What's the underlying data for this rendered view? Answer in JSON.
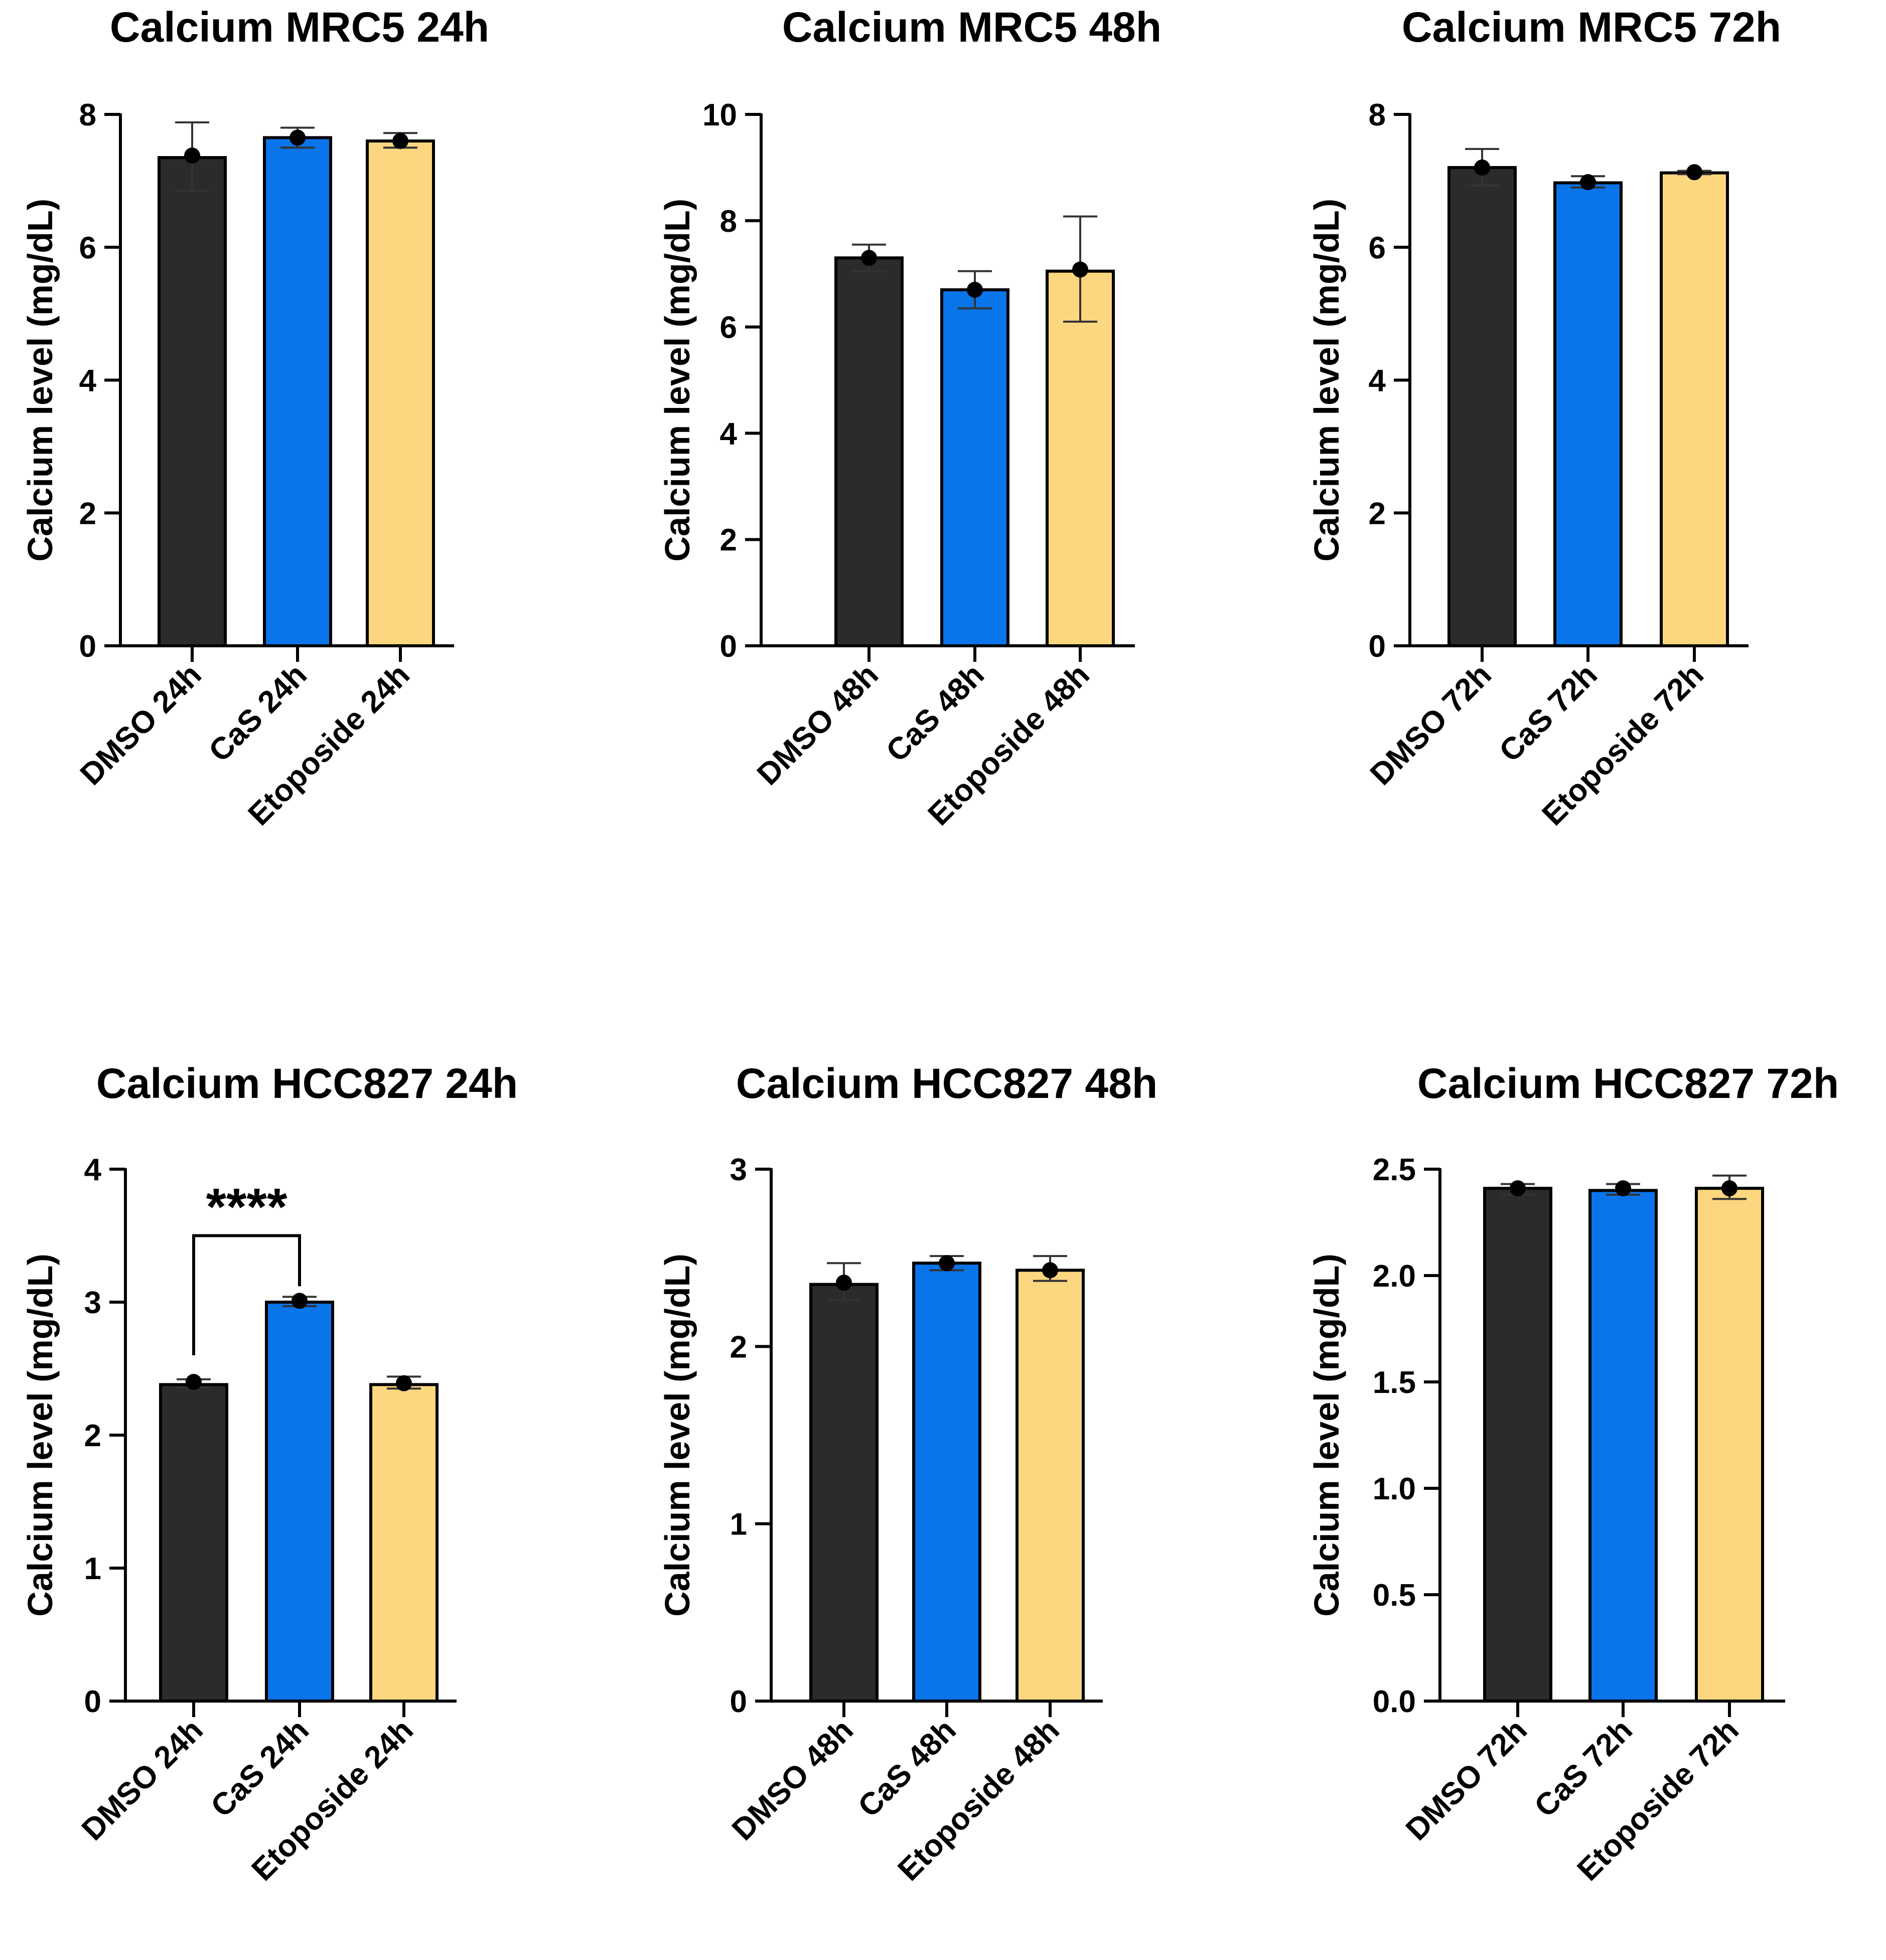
{
  "figure": {
    "colors": {
      "dmso": "#2b2b2b",
      "cas": "#0a74ea",
      "etoposide": "#fdd780",
      "stroke": "#000000"
    }
  },
  "chart_data": [
    {
      "type": "bar",
      "title": "Calcium MRC5 24h",
      "ylabel": "Calcium level (mg/dL)",
      "xlabel": "",
      "ylim": [
        0,
        8
      ],
      "yticks": [
        "0",
        "2",
        "4",
        "6",
        "8"
      ],
      "categories": [
        "DMSO 24h",
        "CaS 24h",
        "Etoposide 24h"
      ],
      "values": [
        7.35,
        7.65,
        7.6
      ],
      "error_low": [
        6.85,
        7.5,
        7.5
      ],
      "error_high": [
        7.88,
        7.8,
        7.72
      ],
      "points": [
        7.38,
        7.65,
        7.6
      ]
    },
    {
      "type": "bar",
      "title": "Calcium MRC5 48h",
      "ylabel": "Calcium level (mg/dL)",
      "xlabel": "",
      "ylim": [
        0,
        10
      ],
      "yticks": [
        "0",
        "2",
        "4",
        "6",
        "8",
        "10"
      ],
      "categories": [
        "DMSO 48h",
        "CaS 48h",
        "Etoposide 48h"
      ],
      "values": [
        7.3,
        6.7,
        7.05
      ],
      "error_low": [
        7.05,
        6.35,
        6.1
      ],
      "error_high": [
        7.55,
        7.05,
        8.08
      ],
      "points": [
        7.3,
        6.7,
        7.08
      ]
    },
    {
      "type": "bar",
      "title": "Calcium MRC5 72h",
      "ylabel": "Calcium level (mg/dL)",
      "xlabel": "",
      "ylim": [
        0,
        8
      ],
      "yticks": [
        "0",
        "2",
        "4",
        "6",
        "8"
      ],
      "categories": [
        "DMSO 72h",
        "CaS 72h",
        "Etoposide 72h"
      ],
      "values": [
        7.2,
        6.97,
        7.12
      ],
      "error_low": [
        6.93,
        6.9,
        7.1
      ],
      "error_high": [
        7.48,
        7.07,
        7.15
      ],
      "points": [
        7.2,
        6.98,
        7.13
      ]
    },
    {
      "type": "bar",
      "title": "Calcium HCC827 24h",
      "ylabel": "Calcium level (mg/dL)",
      "xlabel": "",
      "ylim": [
        0,
        4
      ],
      "yticks": [
        "0",
        "1",
        "2",
        "3",
        "4"
      ],
      "categories": [
        "DMSO 24h",
        "CaS 24h",
        "Etoposide 24h"
      ],
      "values": [
        2.38,
        3.0,
        2.38
      ],
      "error_low": [
        2.36,
        2.97,
        2.35
      ],
      "error_high": [
        2.42,
        3.04,
        2.44
      ],
      "points": [
        2.4,
        3.01,
        2.39
      ],
      "significance": {
        "from": 0,
        "to": 1,
        "label": "****"
      }
    },
    {
      "type": "bar",
      "title": "Calcium HCC827 48h",
      "ylabel": "Calcium level (mg/dL)",
      "xlabel": "",
      "ylim": [
        0,
        3
      ],
      "yticks": [
        "0",
        "1",
        "2",
        "3"
      ],
      "categories": [
        "DMSO 48h",
        "CaS 48h",
        "Etoposide 48h"
      ],
      "values": [
        2.35,
        2.47,
        2.43
      ],
      "error_low": [
        2.26,
        2.43,
        2.37
      ],
      "error_high": [
        2.47,
        2.51,
        2.51
      ],
      "points": [
        2.36,
        2.47,
        2.43
      ]
    },
    {
      "type": "bar",
      "title": "Calcium HCC827 72h",
      "ylabel": "Calcium level (mg/dL)",
      "xlabel": "",
      "ylim": [
        0,
        2.5
      ],
      "yticks": [
        "0.0",
        "0.5",
        "1.0",
        "1.5",
        "2.0",
        "2.5"
      ],
      "categories": [
        "DMSO 72h",
        "CaS 72h",
        "Etoposide 72h"
      ],
      "values": [
        2.41,
        2.4,
        2.41
      ],
      "error_low": [
        2.38,
        2.38,
        2.36
      ],
      "error_high": [
        2.43,
        2.43,
        2.47
      ],
      "points": [
        2.41,
        2.41,
        2.41
      ]
    }
  ]
}
